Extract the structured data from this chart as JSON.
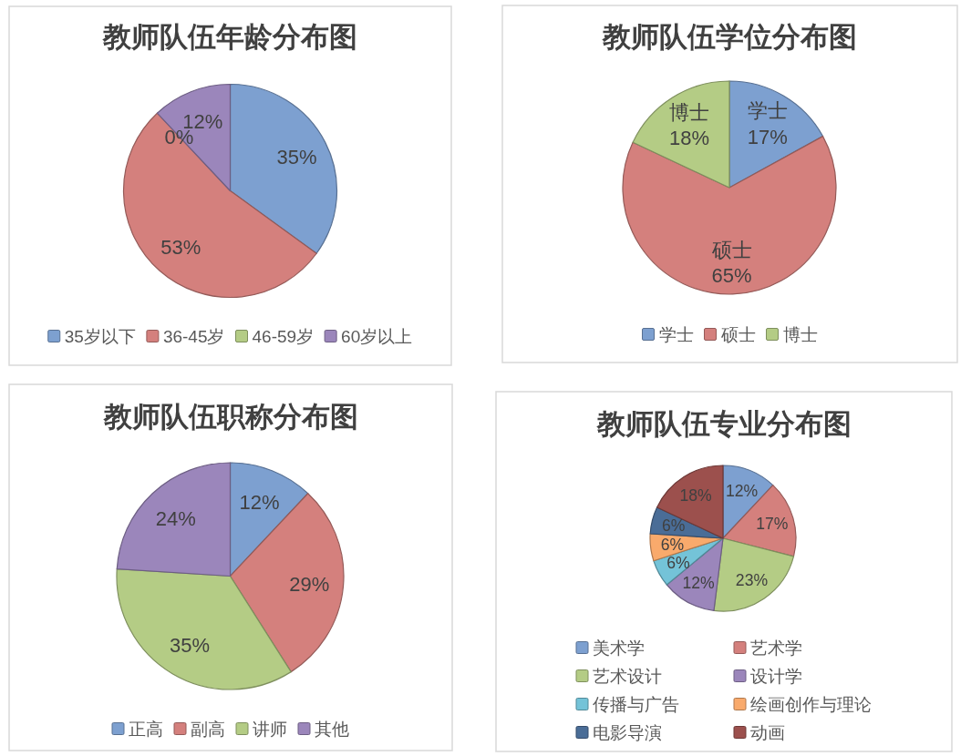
{
  "chart_data": [
    {
      "type": "pie",
      "title": "教师队伍年龄分布图",
      "categories": [
        "35岁以下",
        "36-45岁",
        "46-59岁",
        "60岁以上"
      ],
      "values": [
        35,
        53,
        0,
        12
      ],
      "colors": [
        "#7da0d0",
        "#d4807d",
        "#b4cc85",
        "#9b86bb"
      ],
      "value_labels": [
        "35%",
        "53%",
        "0%",
        "12%"
      ],
      "legend": "bottom"
    },
    {
      "type": "pie",
      "title": "教师队伍学位分布图",
      "categories": [
        "学士",
        "硕士",
        "博士"
      ],
      "values": [
        17,
        65,
        18
      ],
      "colors": [
        "#7da0d0",
        "#d4807d",
        "#b4cc85"
      ],
      "value_labels": [
        "学士 17%",
        "硕士 65%",
        "博士 18%"
      ],
      "legend": "bottom"
    },
    {
      "type": "pie",
      "title": "教师队伍职称分布图",
      "categories": [
        "正高",
        "副高",
        "讲师",
        "其他"
      ],
      "values": [
        12,
        29,
        35,
        24
      ],
      "colors": [
        "#7da0d0",
        "#d4807d",
        "#b4cc85",
        "#9b86bb"
      ],
      "value_labels": [
        "12%",
        "29%",
        "35%",
        "24%"
      ],
      "legend": "bottom"
    },
    {
      "type": "pie",
      "title": "教师队伍专业分布图",
      "categories": [
        "美术学",
        "艺术学",
        "艺术设计",
        "设计学",
        "传播与广告",
        "绘画创作与理论",
        "电影导演",
        "动画"
      ],
      "values": [
        12,
        17,
        23,
        12,
        6,
        6,
        6,
        18
      ],
      "colors": [
        "#7da0d0",
        "#d4807d",
        "#b4cc85",
        "#9b86bb",
        "#74c3d8",
        "#f9aa6c",
        "#4a6d97",
        "#9c504d"
      ],
      "value_labels": [
        "12%",
        "17%",
        "23%",
        "12%",
        "6%",
        "6%",
        "6%",
        "18%"
      ],
      "legend": "bottom"
    }
  ]
}
